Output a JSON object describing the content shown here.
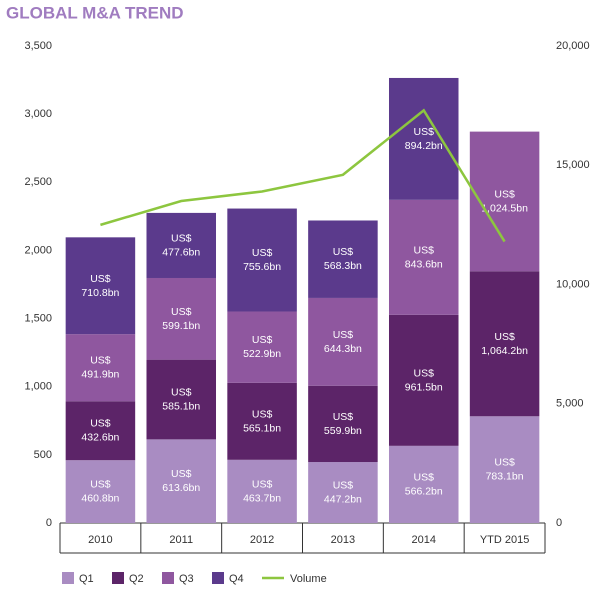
{
  "chart_data": {
    "type": "stacked-bar-line",
    "title": "GLOBAL M&A TREND",
    "categories": [
      "2010",
      "2011",
      "2012",
      "2013",
      "2014",
      "YTD 2015"
    ],
    "series": [
      {
        "name": "Q1",
        "color": "#a98cc2",
        "values": [
          460.8,
          613.6,
          463.7,
          447.2,
          566.2,
          783.1
        ],
        "value_labels": [
          "US$ 460.8bn",
          "US$ 613.6bn",
          "US$ 463.7bn",
          "US$ 447.2bn",
          "US$ 566.2bn",
          "US$ 783.1bn"
        ]
      },
      {
        "name": "Q2",
        "color": "#5c2468",
        "values": [
          432.6,
          585.1,
          565.1,
          559.9,
          961.5,
          1064.2
        ],
        "value_labels": [
          "US$ 432.6bn",
          "US$ 585.1bn",
          "US$ 565.1bn",
          "US$ 559.9bn",
          "US$ 961.5bn",
          "US$ 1,064.2bn"
        ]
      },
      {
        "name": "Q3",
        "color": "#8f579f",
        "values": [
          491.9,
          599.1,
          522.9,
          644.3,
          843.6,
          1024.5
        ],
        "value_labels": [
          "US$ 491.9bn",
          "US$ 599.1bn",
          "US$ 522.9bn",
          "US$ 644.3bn",
          "US$ 843.6bn",
          "US$ 1,024.5bn"
        ]
      },
      {
        "name": "Q4",
        "color": "#5b3a8c",
        "values": [
          710.8,
          477.6,
          755.6,
          568.3,
          894.2,
          null
        ],
        "value_labels": [
          "US$ 710.8bn",
          "US$ 477.6bn",
          "US$ 755.6bn",
          "US$ 568.3bn",
          "US$ 894.2bn",
          null
        ]
      },
      {
        "name": "Volume",
        "color": "#8dc63f",
        "axis": "y2",
        "values": [
          12500,
          13500,
          13900,
          14600,
          17300,
          11800
        ]
      }
    ],
    "ylim": [
      0,
      3500
    ],
    "yticks": [
      0,
      500,
      {
        "value": 1000,
        "label": "1,000"
      },
      {
        "value": 1500,
        "label": "1,500"
      },
      {
        "value": 2000,
        "label": "2,000"
      },
      {
        "value": 2500,
        "label": "2,500"
      },
      {
        "value": 3000,
        "label": "3,000"
      },
      {
        "value": 3500,
        "label": "3,500"
      }
    ],
    "y2lim": [
      0,
      20000
    ],
    "y2ticks": [
      0,
      {
        "value": 5000,
        "label": "5,000"
      },
      {
        "value": 10000,
        "label": "10,000"
      },
      {
        "value": 15000,
        "label": "15,000"
      },
      {
        "value": 20000,
        "label": "20,000"
      }
    ]
  }
}
